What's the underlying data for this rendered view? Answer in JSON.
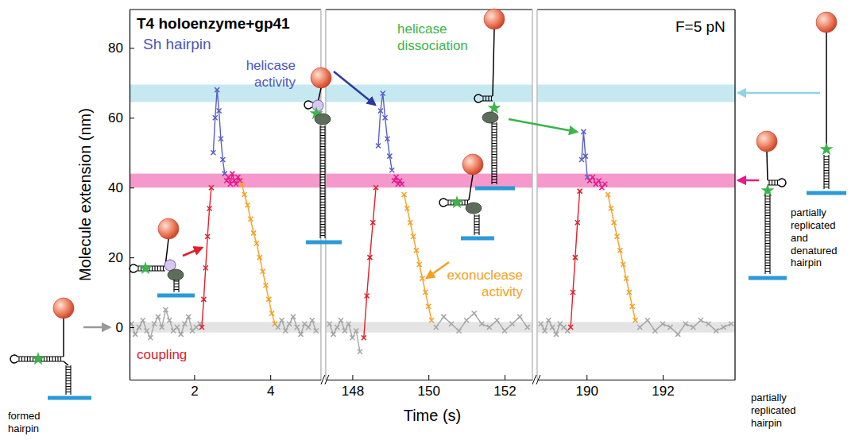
{
  "chart_data": {
    "type": "line",
    "title": "T4 holoenzyme+gp41",
    "subtitle": "Sh hairpin",
    "x_label": "Time (s)",
    "y_label": "Molecule extension (nm)",
    "ylim": [
      -15,
      91
    ],
    "yticks": [
      0,
      20,
      40,
      60,
      80
    ],
    "marker": "x",
    "line_style": "solid",
    "bands": [
      {
        "y": [
          64.5,
          69.5
        ],
        "color": "#c6e9f1"
      },
      {
        "y": [
          40,
          44
        ],
        "color": "#f598cc"
      },
      {
        "y": [
          -1.5,
          1.5
        ],
        "color": "#e4e4e4"
      }
    ],
    "panels": [
      {
        "xlim": [
          0.3,
          5.33
        ],
        "xticks": [
          2,
          4
        ],
        "series": [
          {
            "color": "#a6a6a6",
            "x": [
              0.35,
              0.45,
              0.55,
              0.65,
              0.75,
              0.85,
              0.95,
              1.05,
              1.15,
              1.25,
              1.35,
              1.45,
              1.55,
              1.65,
              1.75,
              1.85,
              1.95,
              2.05,
              2.15
            ],
            "values": [
              1,
              -2,
              0,
              2,
              -1,
              -3,
              1,
              3,
              0,
              5,
              2,
              -1,
              0,
              -2,
              1,
              3,
              -1,
              0,
              1
            ]
          },
          {
            "color": "#e0202a",
            "x": [
              2.2,
              2.25,
              2.3,
              2.35,
              2.4,
              2.45
            ],
            "values": [
              0,
              8,
              17,
              26,
              34,
              40
            ]
          },
          {
            "color": "#5a5fc8",
            "x": [
              2.5,
              2.55,
              2.6,
              2.65,
              2.7,
              2.75,
              2.8
            ],
            "values": [
              50,
              60,
              68,
              62,
              54,
              48,
              44
            ]
          },
          {
            "color": "#e8198c",
            "x": [
              2.85,
              2.9,
              2.95,
              3.0,
              3.05,
              3.1,
              3.15,
              3.2
            ],
            "values": [
              42,
              43,
              41,
              44,
              42,
              41,
              43,
              42
            ]
          },
          {
            "color": "#f5a020",
            "x": [
              3.25,
              3.32,
              3.4,
              3.48,
              3.56,
              3.64,
              3.72,
              3.8,
              3.88,
              3.96,
              4.04,
              4.12
            ],
            "values": [
              41,
              38,
              35,
              31,
              27,
              24,
              20,
              16,
              12,
              8,
              4,
              1
            ]
          },
          {
            "color": "#a6a6a6",
            "x": [
              4.2,
              4.3,
              4.4,
              4.5,
              4.6,
              4.7,
              4.8,
              4.9,
              5.0,
              5.1,
              5.2
            ],
            "values": [
              0,
              2,
              -1,
              1,
              3,
              0,
              -2,
              1,
              0,
              2,
              -1
            ]
          }
        ]
      },
      {
        "xlim": [
          147.3,
          152.73
        ],
        "xticks": [
          148,
          150,
          152
        ],
        "series": [
          {
            "color": "#a6a6a6",
            "x": [
              147.4,
              147.5,
              147.6,
              147.7,
              147.8,
              147.9,
              148.0,
              148.1,
              148.2
            ],
            "values": [
              1,
              -2,
              0,
              2,
              -1,
              1,
              -3,
              -1,
              -7
            ]
          },
          {
            "color": "#e0202a",
            "x": [
              148.3,
              148.38,
              148.46,
              148.54,
              148.62
            ],
            "values": [
              -3,
              9,
              20,
              30,
              40
            ]
          },
          {
            "color": "#5a5fc8",
            "x": [
              148.68,
              148.74,
              148.8,
              148.86,
              148.92,
              148.98,
              149.04
            ],
            "values": [
              52,
              62,
              67,
              60,
              54,
              49,
              45
            ]
          },
          {
            "color": "#e8198c",
            "x": [
              149.1,
              149.15,
              149.2,
              149.25,
              149.3
            ],
            "values": [
              42,
              43,
              41,
              42,
              41
            ]
          },
          {
            "color": "#f5a020",
            "x": [
              149.36,
              149.44,
              149.52,
              149.6,
              149.68,
              149.76,
              149.84,
              149.92,
              150.0,
              150.08
            ],
            "values": [
              38,
              34,
              30,
              26,
              22,
              18,
              14,
              10,
              6,
              2
            ]
          },
          {
            "color": "#a6a6a6",
            "x": [
              150.2,
              150.4,
              150.6,
              150.8,
              151.0,
              151.2,
              151.4,
              151.6,
              151.8,
              152.0,
              152.2,
              152.4,
              152.6
            ],
            "values": [
              0,
              3,
              1,
              -1,
              2,
              4,
              1,
              0,
              2,
              -1,
              1,
              3,
              0
            ]
          }
        ]
      },
      {
        "xlim": [
          188.7,
          193.9
        ],
        "xticks": [
          190,
          192
        ],
        "series": [
          {
            "color": "#a6a6a6",
            "x": [
              188.8,
              188.9,
              189.0,
              189.1,
              189.2,
              189.3,
              189.4,
              189.5
            ],
            "values": [
              1,
              -1,
              2,
              0,
              -2,
              1,
              0,
              -1
            ]
          },
          {
            "color": "#e0202a",
            "x": [
              189.58,
              189.64,
              189.7,
              189.76,
              189.82
            ],
            "values": [
              0,
              10,
              20,
              30,
              39
            ]
          },
          {
            "color": "#5a5fc8",
            "x": [
              189.87,
              189.92,
              189.97,
              190.02
            ],
            "values": [
              48,
              56,
              49,
              43
            ]
          },
          {
            "color": "#e8198c",
            "x": [
              190.08,
              190.16,
              190.24,
              190.32,
              190.4,
              190.48
            ],
            "values": [
              42,
              43,
              41,
              42,
              40,
              41
            ]
          },
          {
            "color": "#f5a020",
            "x": [
              190.56,
              190.64,
              190.72,
              190.8,
              190.88,
              190.96,
              191.04,
              191.12,
              191.2,
              191.28
            ],
            "values": [
              38,
              34,
              30,
              26,
              22,
              18,
              14,
              10,
              6,
              2
            ]
          },
          {
            "color": "#a6a6a6",
            "x": [
              191.4,
              191.6,
              191.8,
              192.0,
              192.2,
              192.4,
              192.6,
              192.8,
              193.0,
              193.2,
              193.4,
              193.6,
              193.8
            ],
            "values": [
              0,
              2,
              -1,
              1,
              0,
              -2,
              1,
              0,
              2,
              1,
              -1,
              0,
              1
            ]
          }
        ]
      }
    ],
    "annotations": [
      {
        "text": "F=5 pN"
      },
      {
        "text": "coupling",
        "color": "#e0202a"
      },
      {
        "text": "helicase activity",
        "color": "#4b55c0"
      },
      {
        "text": "helicase dissociation",
        "color": "#3cb44a"
      },
      {
        "text": "exonuclease activity",
        "color": "#f5a020"
      },
      {
        "text": "formed hairpin"
      },
      {
        "text": "partially replicated and denatured hairpin"
      },
      {
        "text": "partially replicated hairpin"
      }
    ]
  }
}
